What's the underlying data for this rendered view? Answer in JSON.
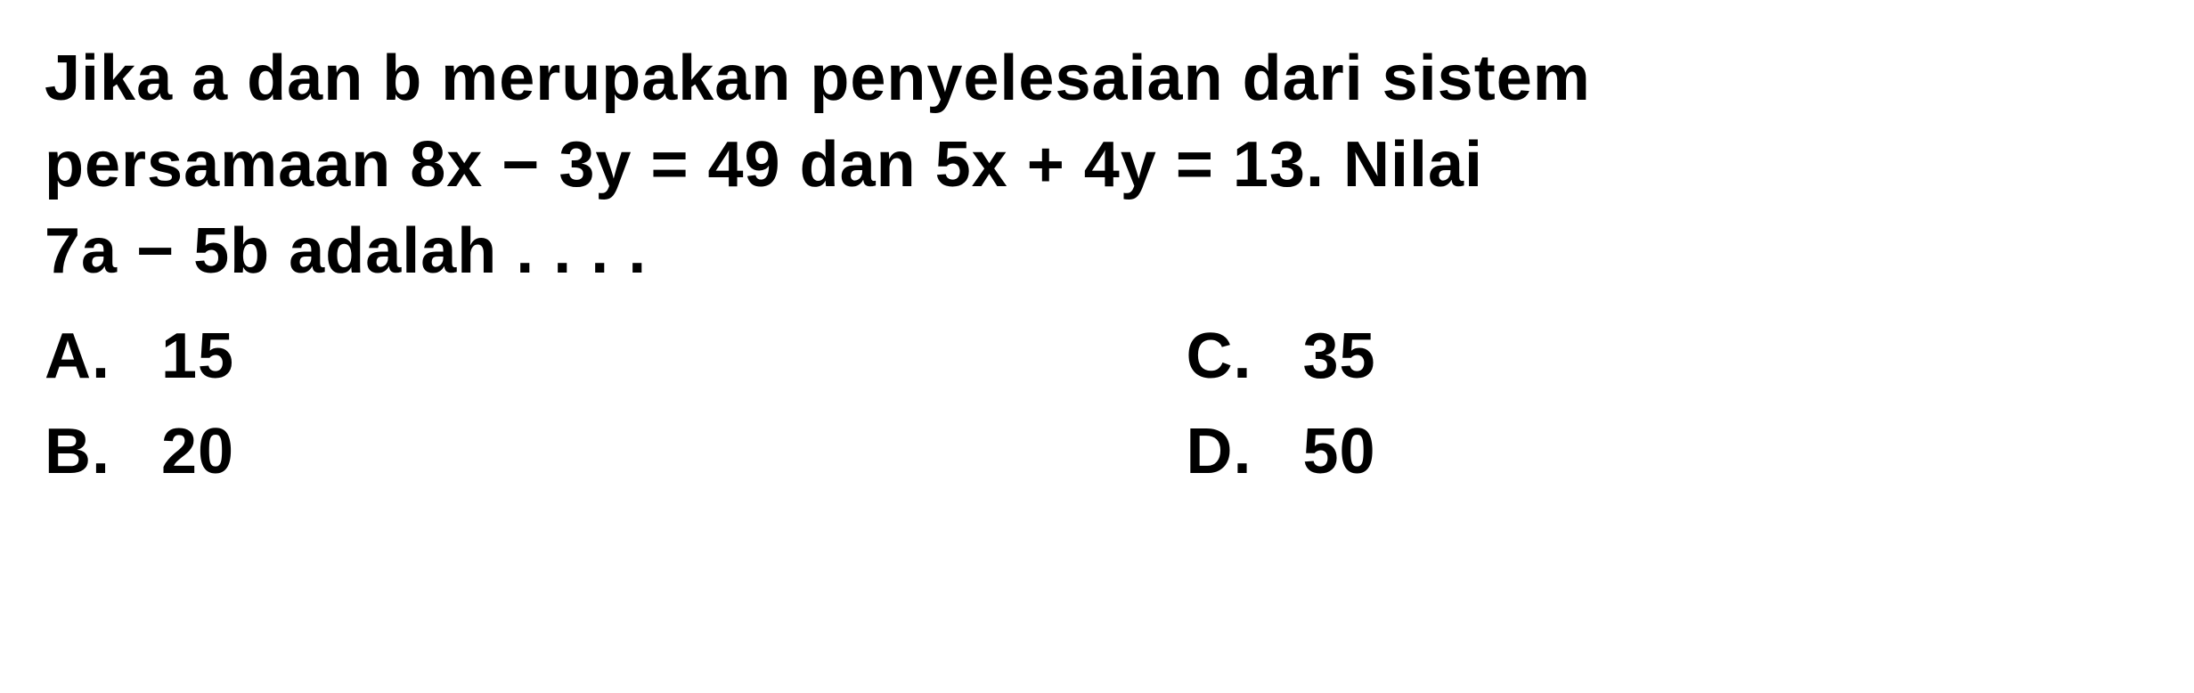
{
  "question": {
    "line1": "Jika a dan b merupakan penyelesaian dari sistem",
    "line2": "persamaan 8x − 3y = 49 dan 5x + 4y = 13. Nilai",
    "line3": "7a − 5b adalah . . . ."
  },
  "options": {
    "a": {
      "label": "A.",
      "value": "15"
    },
    "b": {
      "label": "B.",
      "value": "20"
    },
    "c": {
      "label": "C.",
      "value": "35"
    },
    "d": {
      "label": "D.",
      "value": "50"
    }
  },
  "styling": {
    "background_color": "#ffffff",
    "text_color": "#000000",
    "font_size_pt": 54,
    "font_weight": "bold",
    "font_family": "Arial",
    "line_height": 1.35
  }
}
